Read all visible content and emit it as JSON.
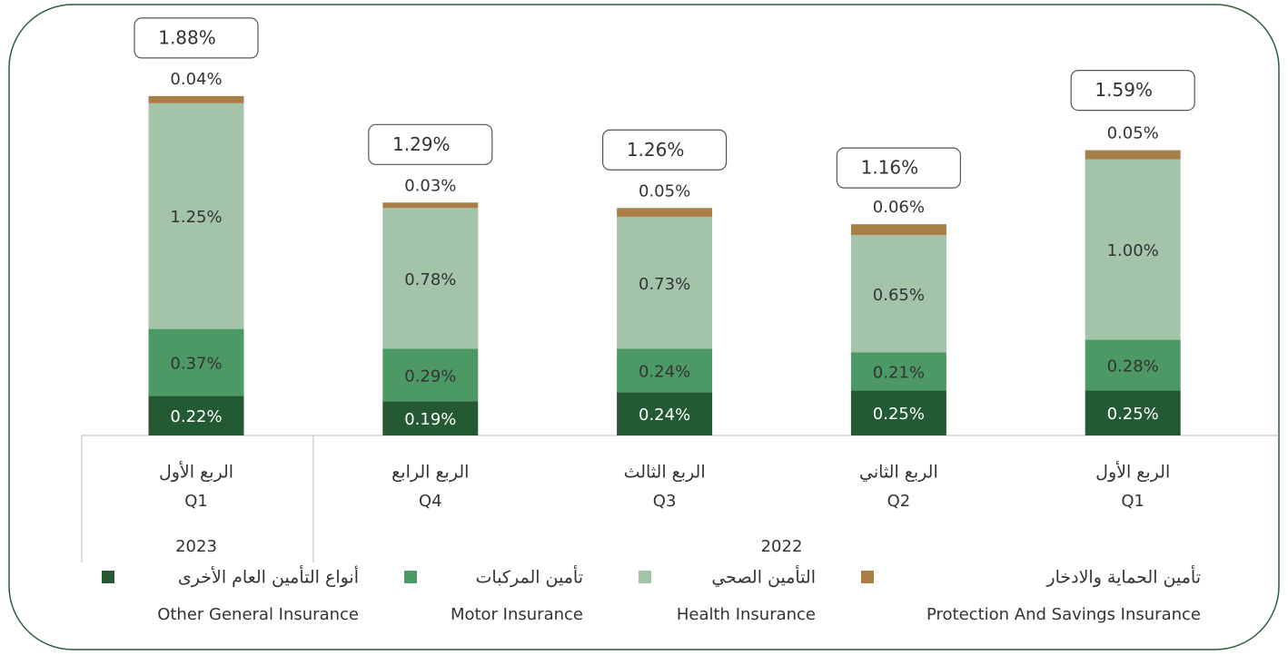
{
  "chart_data": {
    "type": "stacked_bar",
    "categories": [
      "Q1",
      "Q4",
      "Q3",
      "Q2",
      "Q1"
    ],
    "category_labels_ar": [
      "الربع الأول",
      "الربع الرابع",
      "الربع الثالث",
      "الربع الثاني",
      "الربع الأول"
    ],
    "groups": [
      {
        "label": "2023",
        "span": 1
      },
      {
        "label": "2022",
        "span": 4
      }
    ],
    "series": [
      {
        "name": "Other General Insurance",
        "name_ar": "أنواع التأمين العام الأخرى",
        "color": "#245a33",
        "values": [
          0.22,
          0.19,
          0.24,
          0.25,
          0.25
        ],
        "value_labels": [
          "0.22%",
          "0.19%",
          "0.24%",
          "0.25%",
          "0.25%"
        ]
      },
      {
        "name": "Motor Insurance",
        "name_ar": "تأمين المركبات",
        "color": "#4d9966",
        "values": [
          0.37,
          0.29,
          0.24,
          0.21,
          0.28
        ],
        "value_labels": [
          "0.37%",
          "0.29%",
          "0.24%",
          "0.21%",
          "0.28%"
        ]
      },
      {
        "name": "Health Insurance",
        "name_ar": "التأمين الصحي",
        "color": "#a4c4aa",
        "values": [
          1.25,
          0.78,
          0.73,
          0.65,
          1.0
        ],
        "value_labels": [
          "1.25%",
          "0.78%",
          "0.73%",
          "0.65%",
          "1.00%"
        ]
      },
      {
        "name": "Protection And Savings Insurance",
        "name_ar": "تأمين الحماية والادخار",
        "color": "#a97f48",
        "values": [
          0.04,
          0.03,
          0.05,
          0.06,
          0.05
        ],
        "value_labels": [
          "0.04%",
          "0.03%",
          "0.05%",
          "0.06%",
          "0.05%"
        ]
      }
    ],
    "totals": [
      1.88,
      1.29,
      1.26,
      1.16,
      1.59
    ],
    "total_labels": [
      "1.88%",
      "1.29%",
      "1.26%",
      "1.16%",
      "1.59%"
    ]
  }
}
